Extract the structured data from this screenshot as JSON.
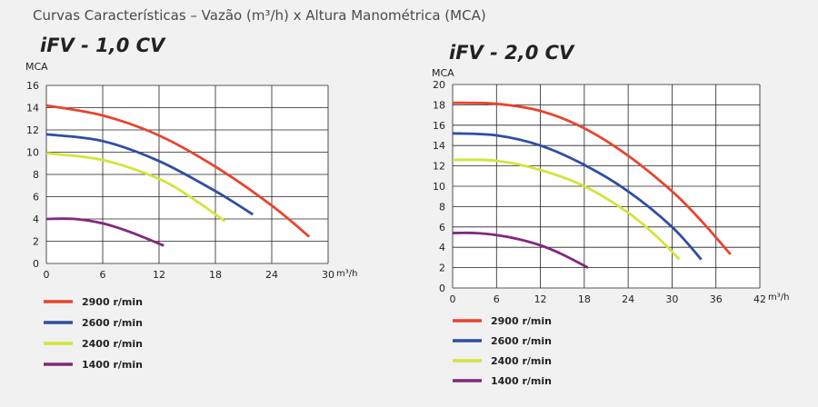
{
  "page_title": "Curvas Características – Vazão (m³/h) x Altura Manométrica (MCA)",
  "colors": {
    "2900": "#e8442f",
    "2600": "#2f4ea3",
    "2400": "#d3e43b",
    "1400": "#7e2a7d"
  },
  "chart_data": [
    {
      "type": "line",
      "title": "iFV - 1,0 CV",
      "ylabel": "MCA",
      "xlabel": "m³/h",
      "xlim": [
        0,
        30
      ],
      "ylim": [
        0,
        16
      ],
      "xticks": [
        0,
        6,
        12,
        18,
        24,
        30
      ],
      "yticks": [
        0,
        2,
        4,
        6,
        8,
        10,
        12,
        14,
        16
      ],
      "xtick_labels": [
        "0",
        "6",
        "12",
        "18",
        "24",
        "30"
      ],
      "ytick_labels": [
        "0",
        "2",
        "4",
        "6",
        "8",
        "10",
        "12",
        "14",
        "16"
      ],
      "grid": true,
      "legend_position": "bottom",
      "series": [
        {
          "name": "2900 r/min",
          "color_key": "2900",
          "x": [
            0,
            6,
            12,
            18,
            24,
            28
          ],
          "y": [
            14.2,
            13.3,
            11.5,
            8.7,
            5.2,
            2.4
          ]
        },
        {
          "name": "2600 r/min",
          "color_key": "2600",
          "x": [
            0,
            6,
            12,
            18,
            22
          ],
          "y": [
            11.6,
            11.0,
            9.2,
            6.5,
            4.4
          ]
        },
        {
          "name": "2400 r/min",
          "color_key": "2400",
          "x": [
            0,
            6,
            12,
            16,
            19
          ],
          "y": [
            9.9,
            9.3,
            7.6,
            5.6,
            3.8
          ]
        },
        {
          "name": "1400 r/min",
          "color_key": "1400",
          "x": [
            0,
            3,
            6,
            9,
            12.5
          ],
          "y": [
            4.0,
            4.0,
            3.6,
            2.8,
            1.6
          ]
        }
      ]
    },
    {
      "type": "line",
      "title": "iFV - 2,0 CV",
      "ylabel": "MCA",
      "xlabel": "m³/h",
      "xlim": [
        0,
        42
      ],
      "ylim": [
        0,
        20
      ],
      "xticks": [
        0,
        6,
        12,
        18,
        24,
        30,
        36,
        42
      ],
      "yticks": [
        0,
        2,
        4,
        6,
        8,
        10,
        12,
        14,
        16,
        18,
        20
      ],
      "xtick_labels": [
        "0",
        "6",
        "12",
        "18",
        "24",
        "30",
        "36",
        "42"
      ],
      "ytick_labels": [
        "0",
        "2",
        "4",
        "6",
        "8",
        "10",
        "12",
        "14",
        "16",
        "18",
        "20"
      ],
      "grid": true,
      "legend_position": "bottom",
      "series": [
        {
          "name": "2900 r/min",
          "color_key": "2900",
          "x": [
            0,
            6,
            12,
            18,
            24,
            30,
            34,
            38
          ],
          "y": [
            18.2,
            18.1,
            17.4,
            15.7,
            13.0,
            9.5,
            6.6,
            3.3
          ]
        },
        {
          "name": "2600 r/min",
          "color_key": "2600",
          "x": [
            0,
            6,
            12,
            18,
            24,
            30,
            34
          ],
          "y": [
            15.2,
            15.0,
            14.0,
            12.1,
            9.5,
            6.0,
            2.8
          ]
        },
        {
          "name": "2400 r/min",
          "color_key": "2400",
          "x": [
            0,
            6,
            12,
            18,
            24,
            28,
            31
          ],
          "y": [
            12.6,
            12.5,
            11.6,
            10.0,
            7.4,
            5.0,
            2.8
          ]
        },
        {
          "name": "1400 r/min",
          "color_key": "1400",
          "x": [
            0,
            3,
            6,
            9,
            12,
            15,
            18.5
          ],
          "y": [
            5.4,
            5.4,
            5.2,
            4.8,
            4.2,
            3.3,
            2.0
          ]
        }
      ]
    }
  ]
}
